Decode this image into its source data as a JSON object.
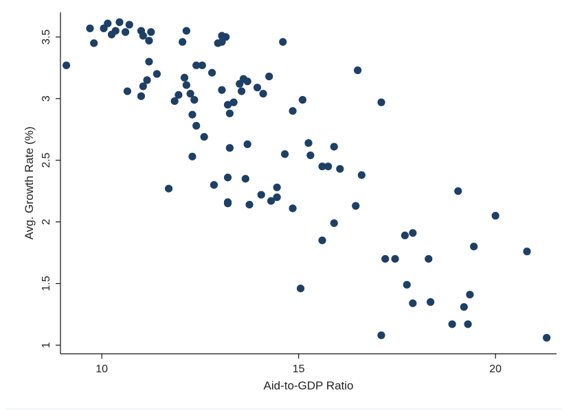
{
  "colors": {
    "marker": "#1e3f66",
    "axis": "#111111",
    "background": "#ffffff"
  },
  "chart_data": {
    "type": "scatter",
    "title": "",
    "xlabel": "Aid-to-GDP Ratio",
    "ylabel": "Avg. Growth Rate (%)",
    "xlim": [
      8.95,
      21.55
    ],
    "ylim": [
      0.93,
      3.7
    ],
    "xticks": [
      10,
      15,
      20
    ],
    "xtick_labels": [
      "10",
      "15",
      "20"
    ],
    "yticks": [
      1,
      1.5,
      2,
      2.5,
      3,
      3.5
    ],
    "ytick_labels": [
      "1",
      "1.5",
      "2",
      "2.5",
      "3",
      "3.5"
    ],
    "grid": false,
    "legend": "none",
    "points": [
      [
        9.1,
        3.27
      ],
      [
        9.7,
        3.57
      ],
      [
        9.8,
        3.45
      ],
      [
        10.05,
        3.57
      ],
      [
        10.15,
        3.61
      ],
      [
        10.25,
        3.52
      ],
      [
        10.35,
        3.55
      ],
      [
        10.45,
        3.62
      ],
      [
        10.6,
        3.54
      ],
      [
        10.7,
        3.6
      ],
      [
        10.65,
        3.06
      ],
      [
        11.0,
        3.55
      ],
      [
        11.05,
        3.51
      ],
      [
        11.2,
        3.47
      ],
      [
        11.25,
        3.54
      ],
      [
        11.2,
        3.3
      ],
      [
        11.15,
        3.15
      ],
      [
        11.05,
        3.1
      ],
      [
        11.0,
        3.02
      ],
      [
        11.4,
        3.2
      ],
      [
        11.7,
        2.27
      ],
      [
        11.85,
        2.98
      ],
      [
        11.95,
        3.03
      ],
      [
        12.05,
        3.46
      ],
      [
        12.15,
        3.55
      ],
      [
        12.1,
        3.17
      ],
      [
        12.15,
        3.11
      ],
      [
        12.25,
        3.04
      ],
      [
        12.3,
        2.87
      ],
      [
        12.35,
        2.99
      ],
      [
        12.4,
        2.78
      ],
      [
        12.3,
        2.53
      ],
      [
        12.4,
        3.27
      ],
      [
        12.55,
        3.27
      ],
      [
        12.6,
        2.69
      ],
      [
        12.8,
        3.21
      ],
      [
        12.85,
        2.3
      ],
      [
        12.95,
        3.45
      ],
      [
        13.05,
        3.51
      ],
      [
        13.15,
        3.5
      ],
      [
        13.05,
        3.46
      ],
      [
        13.05,
        3.07
      ],
      [
        13.2,
        2.95
      ],
      [
        13.25,
        2.88
      ],
      [
        13.35,
        2.97
      ],
      [
        13.25,
        2.6
      ],
      [
        13.2,
        2.36
      ],
      [
        13.2,
        2.16
      ],
      [
        13.2,
        2.15
      ],
      [
        13.5,
        3.12
      ],
      [
        13.6,
        3.16
      ],
      [
        13.55,
        3.06
      ],
      [
        13.7,
        3.14
      ],
      [
        13.65,
        2.35
      ],
      [
        13.7,
        2.63
      ],
      [
        13.75,
        2.14
      ],
      [
        13.95,
        3.09
      ],
      [
        14.1,
        3.04
      ],
      [
        14.25,
        3.18
      ],
      [
        14.05,
        2.22
      ],
      [
        14.3,
        2.17
      ],
      [
        14.45,
        2.2
      ],
      [
        14.45,
        2.28
      ],
      [
        14.6,
        3.46
      ],
      [
        14.65,
        2.55
      ],
      [
        14.85,
        2.9
      ],
      [
        14.85,
        2.11
      ],
      [
        15.1,
        2.99
      ],
      [
        15.05,
        1.46
      ],
      [
        15.25,
        2.64
      ],
      [
        15.3,
        2.54
      ],
      [
        15.6,
        2.45
      ],
      [
        15.6,
        1.85
      ],
      [
        15.75,
        2.45
      ],
      [
        15.9,
        2.61
      ],
      [
        15.9,
        1.99
      ],
      [
        16.05,
        2.43
      ],
      [
        16.5,
        3.23
      ],
      [
        16.45,
        2.13
      ],
      [
        16.6,
        2.38
      ],
      [
        17.1,
        2.97
      ],
      [
        17.1,
        1.08
      ],
      [
        17.2,
        1.7
      ],
      [
        17.45,
        1.7
      ],
      [
        17.7,
        1.89
      ],
      [
        17.75,
        1.49
      ],
      [
        17.9,
        1.91
      ],
      [
        17.9,
        1.34
      ],
      [
        18.3,
        1.7
      ],
      [
        18.35,
        1.35
      ],
      [
        18.9,
        1.17
      ],
      [
        19.05,
        2.25
      ],
      [
        19.2,
        1.31
      ],
      [
        19.3,
        1.17
      ],
      [
        19.35,
        1.41
      ],
      [
        19.45,
        1.8
      ],
      [
        20.0,
        2.05
      ],
      [
        20.8,
        1.76
      ],
      [
        21.3,
        1.06
      ]
    ]
  }
}
